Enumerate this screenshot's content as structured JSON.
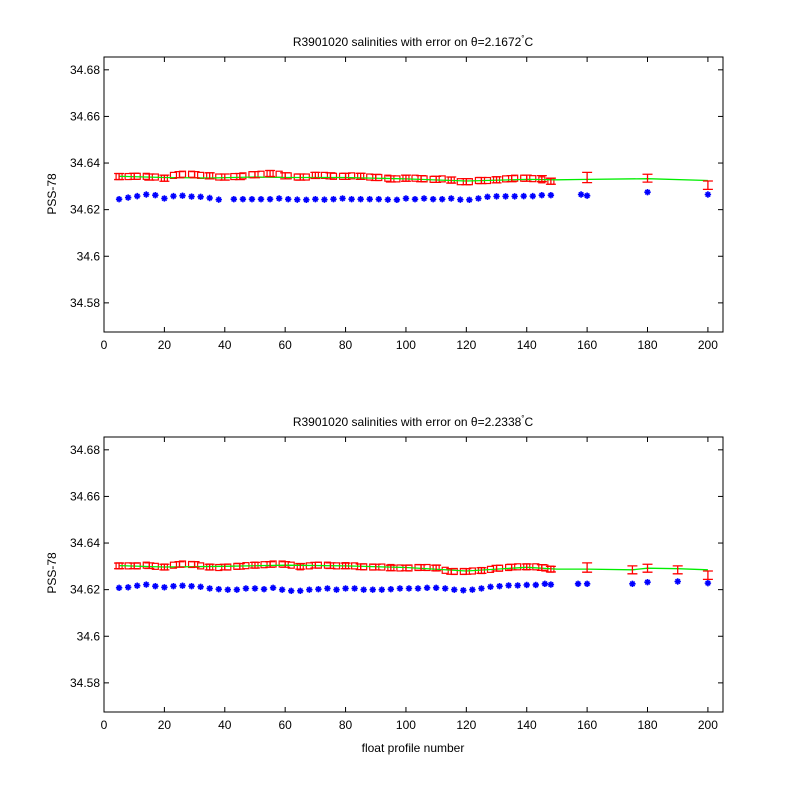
{
  "chart_data": [
    {
      "type": "scatter",
      "title": "R3901020 salinities with error on θ=2.1672",
      "title_sup": "°",
      "title_unit": "C",
      "xlabel": "",
      "ylabel": "PSS-78",
      "xlim": [
        0,
        205
      ],
      "ylim": [
        34.5675,
        34.6855
      ],
      "xticks": [
        0,
        20,
        40,
        60,
        80,
        100,
        120,
        140,
        160,
        180,
        200
      ],
      "yticks": [
        34.58,
        34.6,
        34.62,
        34.64,
        34.66,
        34.68
      ],
      "ytick_labels": [
        "34.58",
        "34.6",
        "34.62",
        "34.64",
        "34.66",
        "34.68"
      ],
      "grid": false,
      "series": [
        {
          "color": "#0000ff",
          "marker": "asterisk",
          "x": [
            5,
            8,
            11,
            14,
            17,
            20,
            23,
            26,
            29,
            32,
            35,
            38,
            43,
            46,
            49,
            52,
            55,
            58,
            61,
            64,
            67,
            70,
            73,
            76,
            79,
            82,
            85,
            88,
            91,
            94,
            97,
            100,
            103,
            106,
            109,
            112,
            115,
            118,
            121,
            124,
            127,
            130,
            133,
            136,
            139,
            142,
            145,
            148,
            158,
            160,
            180,
            200
          ],
          "y": [
            34.6245,
            34.6252,
            34.6258,
            34.6265,
            34.6262,
            34.6248,
            34.6258,
            34.626,
            34.6256,
            34.6255,
            34.625,
            34.6243,
            34.6245,
            34.6245,
            34.6245,
            34.6245,
            34.6245,
            34.6248,
            34.6245,
            34.6243,
            34.6242,
            34.6245,
            34.6243,
            34.6245,
            34.6248,
            34.6245,
            34.6245,
            34.6245,
            34.6245,
            34.6243,
            34.6242,
            34.6248,
            34.6245,
            34.6248,
            34.6245,
            34.6245,
            34.6248,
            34.6243,
            34.6242,
            34.6248,
            34.6255,
            34.6257,
            34.6257,
            34.6257,
            34.6258,
            34.6258,
            34.6262,
            34.6262,
            34.6265,
            34.626,
            34.6275,
            34.6265
          ]
        },
        {
          "color": "#ff0000",
          "marker": "square",
          "x": [
            5,
            8,
            11,
            14,
            17,
            20,
            23,
            26,
            29,
            32,
            35,
            38,
            43,
            46,
            49,
            52,
            55,
            58,
            61,
            64,
            67,
            70,
            73,
            76,
            79,
            82,
            85,
            88,
            91,
            94,
            97,
            100,
            103,
            106,
            109,
            112,
            115,
            118,
            121,
            124,
            127,
            130,
            133,
            136,
            139,
            142,
            145,
            148
          ],
          "y": [
            34.6342,
            34.6342,
            34.6343,
            34.6343,
            34.634,
            34.6335,
            34.6347,
            34.6352,
            34.6352,
            34.6347,
            34.6345,
            34.634,
            34.6342,
            34.6345,
            34.635,
            34.6352,
            34.6355,
            34.6352,
            34.6345,
            34.634,
            34.634,
            34.6347,
            34.6347,
            34.6343,
            34.6343,
            34.6345,
            34.6343,
            34.634,
            34.6338,
            34.6335,
            34.6332,
            34.6335,
            34.6335,
            34.6332,
            34.633,
            34.6332,
            34.6327,
            34.632,
            34.632,
            34.6325,
            34.6325,
            34.6328,
            34.6332,
            34.6335,
            34.6335,
            34.6333,
            34.6328,
            34.6322
          ]
        },
        {
          "color": "#00ee00",
          "marker": "line",
          "x": [
            5,
            20,
            35,
            50,
            60,
            80,
            100,
            120,
            140,
            150,
            160,
            180,
            200
          ],
          "y": [
            34.6343,
            34.6338,
            34.6336,
            34.634,
            34.6338,
            34.6338,
            34.6332,
            34.6323,
            34.633,
            34.6328,
            34.633,
            34.6333,
            34.6325
          ]
        }
      ],
      "error_bars": {
        "color": "#ff0000",
        "x": [
          5,
          10,
          15,
          20,
          25,
          30,
          35,
          40,
          45,
          50,
          55,
          60,
          65,
          70,
          75,
          80,
          85,
          90,
          95,
          100,
          105,
          110,
          115,
          120,
          125,
          130,
          135,
          140,
          145,
          148,
          160,
          180,
          200
        ],
        "y": [
          34.6342,
          34.6343,
          34.634,
          34.6335,
          34.635,
          34.635,
          34.6345,
          34.634,
          34.6342,
          34.635,
          34.6355,
          34.6345,
          34.634,
          34.6347,
          34.6345,
          34.6343,
          34.6343,
          34.6338,
          34.6332,
          34.6335,
          34.6333,
          34.633,
          34.6327,
          34.632,
          34.6325,
          34.6328,
          34.6333,
          34.6335,
          34.6333,
          34.6322,
          34.6338,
          34.6335,
          34.6305
        ],
        "err": [
          0.0013,
          0.0013,
          0.0013,
          0.0013,
          0.0013,
          0.0013,
          0.0013,
          0.0013,
          0.0013,
          0.0013,
          0.0013,
          0.0013,
          0.0013,
          0.0013,
          0.0013,
          0.0013,
          0.0013,
          0.0013,
          0.0013,
          0.0013,
          0.0013,
          0.0013,
          0.0013,
          0.0013,
          0.0013,
          0.0013,
          0.0013,
          0.0013,
          0.0013,
          0.0013,
          0.0022,
          0.0017,
          0.0018
        ]
      }
    },
    {
      "type": "scatter",
      "title": "R3901020 salinities with error on θ=2.2338",
      "title_sup": "°",
      "title_unit": "C",
      "xlabel": "float profile number",
      "ylabel": "PSS-78",
      "xlim": [
        0,
        205
      ],
      "ylim": [
        34.5675,
        34.6855
      ],
      "xticks": [
        0,
        20,
        40,
        60,
        80,
        100,
        120,
        140,
        160,
        180,
        200
      ],
      "yticks": [
        34.58,
        34.6,
        34.62,
        34.64,
        34.66,
        34.68
      ],
      "ytick_labels": [
        "34.58",
        "34.6",
        "34.62",
        "34.64",
        "34.66",
        "34.68"
      ],
      "grid": false,
      "series": [
        {
          "color": "#0000ff",
          "marker": "asterisk",
          "x": [
            5,
            8,
            11,
            14,
            17,
            20,
            23,
            26,
            29,
            32,
            35,
            38,
            41,
            44,
            47,
            50,
            53,
            56,
            59,
            62,
            65,
            68,
            71,
            74,
            77,
            80,
            83,
            86,
            89,
            92,
            95,
            98,
            101,
            104,
            107,
            110,
            113,
            116,
            119,
            122,
            125,
            128,
            131,
            134,
            137,
            140,
            143,
            146,
            148,
            157,
            160,
            175,
            180,
            190,
            200
          ],
          "y": [
            34.6208,
            34.621,
            34.6217,
            34.6222,
            34.6215,
            34.621,
            34.6215,
            34.6217,
            34.6215,
            34.6212,
            34.6205,
            34.6202,
            34.62,
            34.62,
            34.6205,
            34.6205,
            34.6202,
            34.6208,
            34.62,
            34.6195,
            34.6195,
            34.62,
            34.6202,
            34.6205,
            34.62,
            34.6205,
            34.6205,
            34.62,
            34.62,
            34.62,
            34.6202,
            34.6205,
            34.6205,
            34.6205,
            34.6208,
            34.6208,
            34.6205,
            34.62,
            34.6197,
            34.62,
            34.6205,
            34.6212,
            34.6215,
            34.6218,
            34.6218,
            34.622,
            34.622,
            34.6225,
            34.6222,
            34.6225,
            34.6225,
            34.6225,
            34.6232,
            34.6235,
            34.6228
          ]
        },
        {
          "color": "#ff0000",
          "marker": "square",
          "x": [
            5,
            8,
            11,
            14,
            17,
            20,
            23,
            26,
            29,
            32,
            35,
            38,
            41,
            44,
            47,
            50,
            53,
            56,
            59,
            62,
            65,
            68,
            71,
            74,
            77,
            80,
            83,
            86,
            89,
            92,
            95,
            98,
            101,
            104,
            107,
            110,
            113,
            116,
            119,
            122,
            125,
            128,
            131,
            134,
            137,
            140,
            143,
            146,
            148
          ],
          "y": [
            34.6302,
            34.6302,
            34.6302,
            34.6305,
            34.63,
            34.6297,
            34.6305,
            34.631,
            34.6308,
            34.6302,
            34.6297,
            34.6295,
            34.6297,
            34.63,
            34.6303,
            34.6305,
            34.6307,
            34.631,
            34.631,
            34.6305,
            34.6298,
            34.6302,
            34.6305,
            34.6305,
            34.6302,
            34.6303,
            34.6302,
            34.6298,
            34.6297,
            34.6297,
            34.6295,
            34.6293,
            34.6293,
            34.6295,
            34.6295,
            34.6293,
            34.6283,
            34.6278,
            34.6278,
            34.628,
            34.6282,
            34.6287,
            34.6292,
            34.6295,
            34.6298,
            34.6298,
            34.6298,
            34.6293,
            34.6288
          ]
        },
        {
          "color": "#00ee00",
          "marker": "line",
          "x": [
            5,
            20,
            40,
            60,
            80,
            100,
            120,
            140,
            150,
            160,
            175,
            180,
            190,
            200
          ],
          "y": [
            34.6303,
            34.6297,
            34.63,
            34.6305,
            34.6302,
            34.6295,
            34.628,
            34.6296,
            34.6288,
            34.6288,
            34.6285,
            34.6292,
            34.629,
            34.6285
          ]
        }
      ],
      "error_bars": {
        "color": "#ff0000",
        "x": [
          5,
          10,
          15,
          20,
          25,
          30,
          35,
          40,
          45,
          50,
          55,
          60,
          65,
          70,
          75,
          80,
          85,
          90,
          95,
          100,
          105,
          110,
          115,
          120,
          125,
          130,
          135,
          140,
          145,
          148,
          160,
          175,
          180,
          190,
          200
        ],
        "y": [
          34.6302,
          34.6302,
          34.6303,
          34.6297,
          34.6308,
          34.6308,
          34.6297,
          34.6297,
          34.63,
          34.6305,
          34.6308,
          34.6308,
          34.63,
          34.6305,
          34.6303,
          34.6302,
          34.6298,
          34.6297,
          34.6293,
          34.6293,
          34.6295,
          34.6293,
          34.6278,
          34.6278,
          34.6282,
          34.6292,
          34.6297,
          34.6298,
          34.6295,
          34.6288,
          34.6295,
          34.6285,
          34.6292,
          34.6285,
          34.6262
        ],
        "err": [
          0.0012,
          0.0012,
          0.0012,
          0.0012,
          0.0012,
          0.0012,
          0.0012,
          0.0012,
          0.0012,
          0.0012,
          0.0012,
          0.0012,
          0.0012,
          0.0012,
          0.0012,
          0.0012,
          0.0012,
          0.0012,
          0.0012,
          0.0012,
          0.0012,
          0.0012,
          0.0012,
          0.0012,
          0.0012,
          0.0012,
          0.0012,
          0.0012,
          0.0012,
          0.0012,
          0.002,
          0.0017,
          0.0017,
          0.0017,
          0.0018
        ]
      }
    }
  ]
}
